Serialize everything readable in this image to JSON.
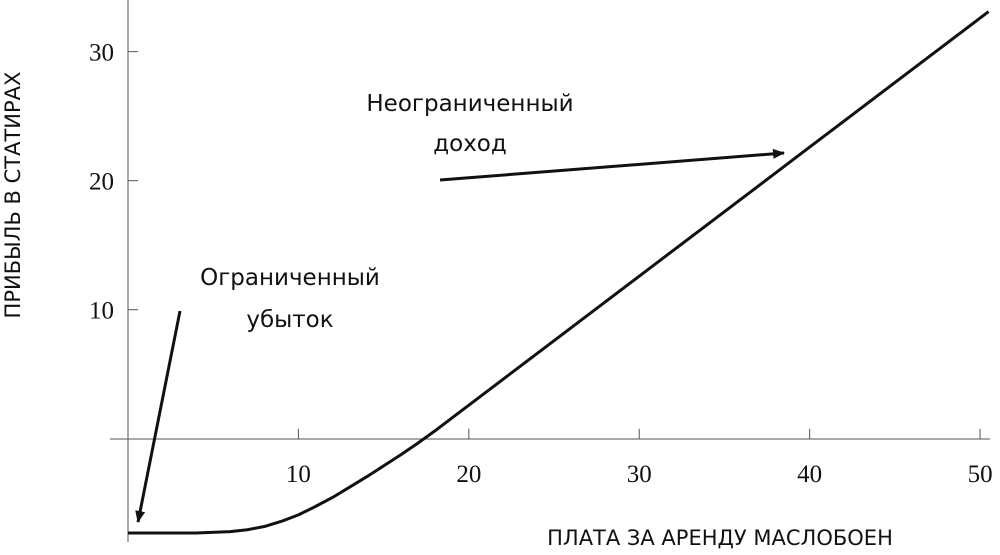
{
  "chart_data": {
    "type": "line",
    "x_label": "ПЛАТА ЗА АРЕНДУ МАСЛОБОЕН",
    "y_label": "ПРИБЫЛЬ В СТАТИРАХ",
    "x": [
      0,
      2,
      4,
      6,
      7,
      8,
      9,
      10,
      11,
      12,
      13,
      14,
      15,
      16,
      17,
      18,
      19,
      20,
      25,
      30,
      35,
      40,
      45,
      50,
      50.5
    ],
    "series": [
      {
        "name": "Прибыль",
        "color": "#111111",
        "values": [
          -7.3,
          -7.3,
          -7.3,
          -7.2,
          -7.05,
          -6.8,
          -6.4,
          -5.9,
          -5.25,
          -4.55,
          -3.75,
          -2.95,
          -2.1,
          -1.25,
          -0.35,
          0.6,
          1.6,
          2.6,
          7.6,
          12.6,
          17.6,
          22.6,
          27.6,
          32.6,
          33.1
        ]
      }
    ],
    "xlim": [
      0,
      50.7
    ],
    "ylim": [
      -8,
      34
    ],
    "xticks": [
      10,
      20,
      30,
      40,
      50
    ],
    "yticks": [
      10,
      20,
      30
    ],
    "annotations": [
      {
        "lines": [
          "Неограниченный",
          "доход"
        ]
      },
      {
        "lines": [
          "Ограниченный",
          "убыток"
        ]
      }
    ]
  }
}
